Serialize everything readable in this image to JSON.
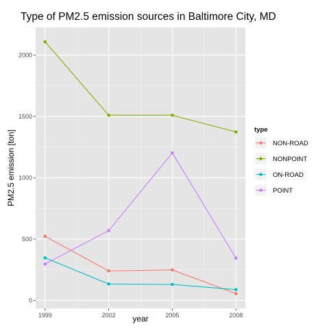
{
  "chart_data": {
    "type": "line",
    "title": "Type of PM2.5 emission sources in Baltimore City, MD",
    "xlabel": "year",
    "ylabel": "PM2.5 emission [ton]",
    "x": [
      1999,
      2002,
      2005,
      2008
    ],
    "x_ticks": [
      "1999",
      "2002",
      "2005",
      "2008"
    ],
    "y_ticks": [
      0,
      500,
      1000,
      1500,
      2000
    ],
    "y_tick_labels": [
      "0",
      "500",
      "1000",
      "1500",
      "2000"
    ],
    "ylim": [
      -65,
      2225
    ],
    "xlim": [
      1999,
      2008
    ],
    "grid": true,
    "legend": {
      "title": "type",
      "position": "right"
    },
    "series": [
      {
        "name": "NON-ROAD",
        "color": "#F8766D",
        "values": [
          522.94,
          240.85,
          248.93,
          55.82
        ]
      },
      {
        "name": "NONPOINT",
        "color": "#7CAE00",
        "values": [
          2107.63,
          1509.5,
          1509.5,
          1373.21
        ]
      },
      {
        "name": "ON-ROAD",
        "color": "#00BFC4",
        "values": [
          346.82,
          134.31,
          130.43,
          88.28
        ]
      },
      {
        "name": "POINT",
        "color": "#C77CFF",
        "values": [
          296.8,
          569.26,
          1202.49,
          344.98
        ]
      }
    ]
  }
}
